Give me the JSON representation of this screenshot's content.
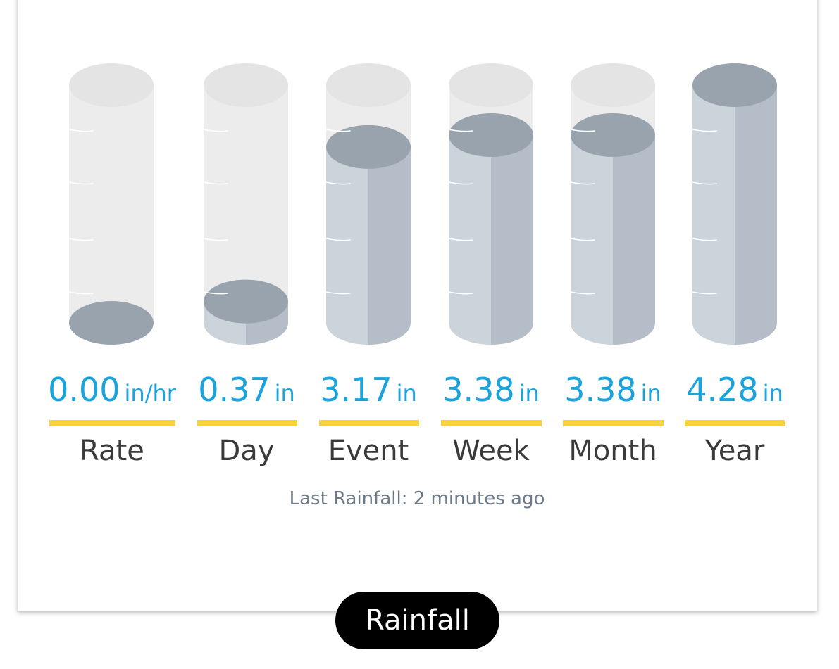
{
  "title": "Rainfall",
  "last_rainfall": "Last Rainfall: 2 minutes ago",
  "gauges": [
    {
      "label": "Rate",
      "value": "0.00",
      "unit": "in/hr",
      "fill_fraction": 0.0
    },
    {
      "label": "Day",
      "value": "0.37",
      "unit": "in",
      "fill_fraction": 0.09
    },
    {
      "label": "Event",
      "value": "3.17",
      "unit": "in",
      "fill_fraction": 0.74
    },
    {
      "label": "Week",
      "value": "3.38",
      "unit": "in",
      "fill_fraction": 0.79
    },
    {
      "label": "Month",
      "value": "3.38",
      "unit": "in",
      "fill_fraction": 0.79
    },
    {
      "label": "Year",
      "value": "4.28",
      "unit": "in",
      "fill_fraction": 1.0
    }
  ],
  "colors": {
    "value_text": "#1aa3dc",
    "underline": "#f5d33f",
    "label_text": "#3a3a3a",
    "tube_empty": "#ececec",
    "tube_empty_top": "#e4e4e4",
    "water_front": "#cbd3db",
    "water_side": "#b5bec8",
    "water_top": "#98a3ad"
  }
}
